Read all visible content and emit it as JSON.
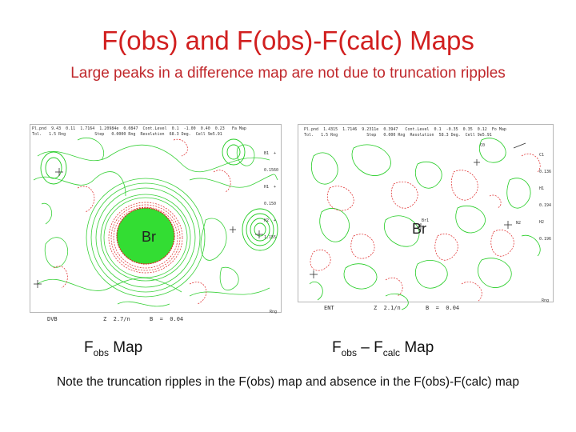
{
  "title": "F(obs) and F(obs)-F(calc) Maps",
  "subtitle": "Large peaks in a difference map are not due to truncation  ripples",
  "left_map": {
    "header_line1": "Pl.pnd  9.43  0.11  1.7164  1.20984e  0.0847  Cont.Level  0.1  -1.00  0.40  0.23   Fa Map",
    "header_line2": "Tol.   1.5 Rng            Step   0.0000 Rng  Resolution  68.3 Deg.  Cell 9e5.91",
    "side_lines": [
      "B1  +",
      "0.1560",
      "H1  +",
      "0.150",
      "H2  +",
      "1.155"
    ],
    "atom_label": "Br",
    "footer_left": "DVB",
    "footer_mid": "Z  2.7/n",
    "footer_right": "B  =  0.04",
    "corner_label": "Rng"
  },
  "right_map": {
    "header_line1": "Pl.pnd  1.4315  1.7146  9.2311e  0.3947   Cont.Level  0.1  -0.35  0.35  0.12  Fo Map",
    "header_line2": "Tol.   1.5 Rng            Step   0.000 Rng  Resolution  58.3 Deg.  Cell 9e5.91",
    "side_lines": [
      "C1",
      "0.136",
      "H1",
      "0.194",
      "H2",
      "0.196"
    ],
    "atom_label": "Br",
    "atom_superscript": "Br1",
    "corner_top": "C0",
    "corner_right": "N2",
    "footer_left": "ENT",
    "footer_mid": "Z  2.1/n",
    "footer_right": "B  =  0.04",
    "corner_label": "Rng"
  },
  "caption_left": {
    "main": "F",
    "sub": "obs",
    "rest": " Map"
  },
  "caption_right": {
    "main1": "F",
    "sub1": "obs",
    "dash": " – ",
    "main2": "F",
    "sub2": "calc",
    "rest": " Map"
  },
  "note": "Note the truncation ripples in the F(obs) map and absence in the F(obs)-F(calc)  map",
  "colors": {
    "title": "#d11f1f",
    "positive_contour": "#22cc22",
    "negative_contour": "#dd2222",
    "peak_fill": "#33dd33"
  }
}
